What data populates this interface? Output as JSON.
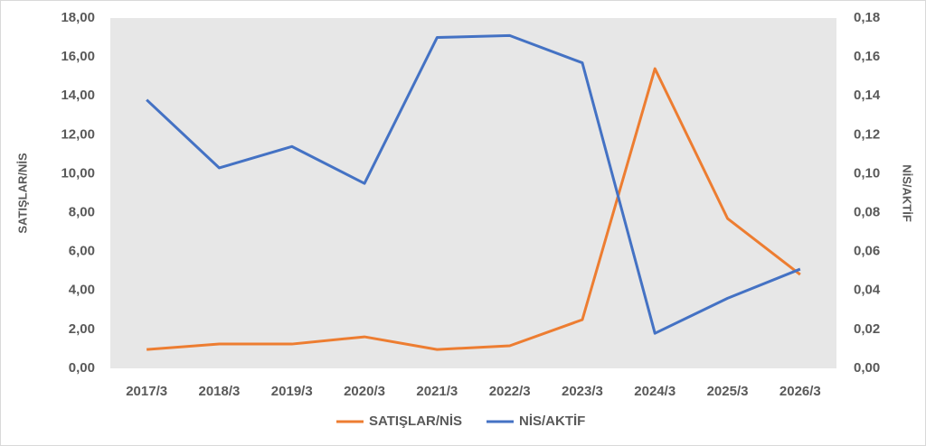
{
  "chart_data": {
    "type": "line",
    "categories": [
      "2017/3",
      "2018/3",
      "2019/3",
      "2020/3",
      "2021/3",
      "2022/3",
      "2023/3",
      "2024/3",
      "2025/3",
      "2026/3"
    ],
    "series": [
      {
        "name": "SATIŞLAR/NİS",
        "color": "#ed7d31",
        "values": [
          0.97,
          1.25,
          1.25,
          1.62,
          0.97,
          1.16,
          2.5,
          15.4,
          7.7,
          4.82
        ]
      },
      {
        "name": "NİS/AKTİF",
        "color": "#4472c4",
        "axis": "y2",
        "values": [
          0.138,
          0.103,
          0.114,
          0.095,
          0.17,
          0.171,
          0.157,
          0.018,
          0.036,
          0.051
        ]
      }
    ],
    "ylabel": "SATIŞLAR/NİS",
    "y2label": "NİS/AKTİF",
    "ylim": [
      0,
      18
    ],
    "yticks": [
      {
        "value": 0,
        "label": "0,00"
      },
      {
        "value": 2,
        "label": "2,00"
      },
      {
        "value": 4,
        "label": "4,00"
      },
      {
        "value": 6,
        "label": "6,00"
      },
      {
        "value": 8,
        "label": "8,00"
      },
      {
        "value": 10,
        "label": "10,00"
      },
      {
        "value": 12,
        "label": "12,00"
      },
      {
        "value": 14,
        "label": "14,00"
      },
      {
        "value": 16,
        "label": "16,00"
      },
      {
        "value": 18,
        "label": "18,00"
      }
    ],
    "y2lim": [
      0,
      0.18
    ],
    "y2ticks": [
      {
        "value": 0,
        "label": "0,00"
      },
      {
        "value": 0.02,
        "label": "0,02"
      },
      {
        "value": 0.04,
        "label": "0,04"
      },
      {
        "value": 0.06,
        "label": "0,06"
      },
      {
        "value": 0.08,
        "label": "0,08"
      },
      {
        "value": 0.1,
        "label": "0,10"
      },
      {
        "value": 0.12,
        "label": "0,12"
      },
      {
        "value": 0.14,
        "label": "0,14"
      },
      {
        "value": 0.16,
        "label": "0,16"
      },
      {
        "value": 0.18,
        "label": "0,18"
      }
    ],
    "legend": "bottom"
  }
}
